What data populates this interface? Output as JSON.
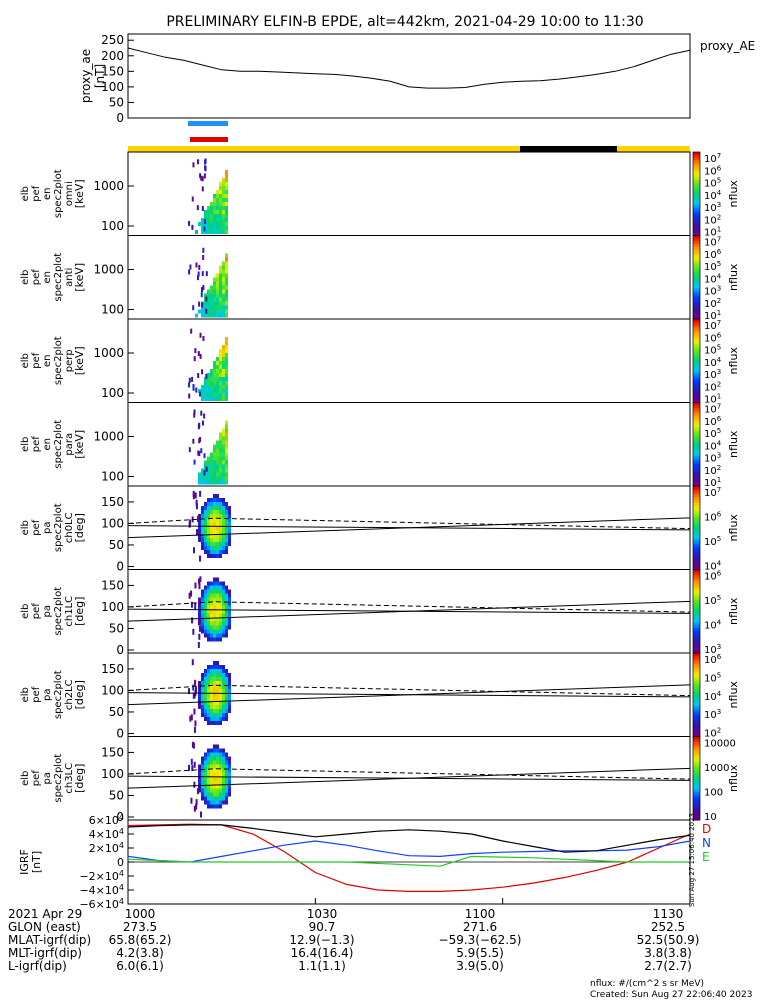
{
  "title": "PRELIMINARY ELFIN-B EPDE, alt=442km, 2021-04-29 10:00 to 11:30",
  "colors": {
    "flag_bar": "#ffd400",
    "flag_dark": "#000000",
    "indicator_top": "#1e90ff",
    "indicator_bottom": "#e00000",
    "igrf_d": "#e00000",
    "igrf_n": "#1040ff",
    "igrf_e": "#22cc22"
  },
  "chart_data": [
    {
      "type": "line",
      "id": "proxy_ae",
      "label_right": "proxy_AE",
      "ylabel": [
        "proxy_ae",
        "[nT]"
      ],
      "yticks": [
        "250",
        "200",
        "150",
        "100",
        "50",
        "0"
      ],
      "ylim": [
        0,
        270
      ],
      "x_minutes": [
        0,
        3,
        6,
        9,
        12,
        15,
        18,
        21,
        24,
        27,
        30,
        33,
        36,
        39,
        42,
        45,
        48,
        51,
        54,
        57,
        60,
        63,
        66,
        69,
        72,
        75,
        78,
        81,
        84,
        87,
        90
      ],
      "values": [
        225,
        210,
        195,
        185,
        170,
        155,
        150,
        150,
        148,
        145,
        142,
        140,
        135,
        128,
        118,
        100,
        96,
        96,
        98,
        108,
        115,
        118,
        120,
        125,
        132,
        140,
        150,
        165,
        185,
        205,
        218
      ]
    },
    {
      "type": "heatmap",
      "id": "omni",
      "ylabel": [
        "elb",
        "pef",
        "en",
        "spec2plot",
        "omni",
        "[keV]"
      ],
      "yticks": [
        "1000",
        "100"
      ],
      "colorbar": {
        "label": "nflux",
        "ticks": [
          "10^7",
          "10^6",
          "10^5",
          "10^4",
          "10^3",
          "10^2",
          "10^1"
        ]
      }
    },
    {
      "type": "heatmap",
      "id": "anti",
      "ylabel": [
        "elb",
        "pef",
        "en",
        "spec2plot",
        "anti",
        "[keV]"
      ],
      "yticks": [
        "1000",
        "100"
      ],
      "colorbar": {
        "label": "nflux",
        "ticks": [
          "10^7",
          "10^6",
          "10^5",
          "10^4",
          "10^3",
          "10^2",
          "10^1"
        ]
      }
    },
    {
      "type": "heatmap",
      "id": "perp",
      "ylabel": [
        "elb",
        "pef",
        "en",
        "spec2plot",
        "perp",
        "[keV]"
      ],
      "yticks": [
        "1000",
        "100"
      ],
      "colorbar": {
        "label": "nflux",
        "ticks": [
          "10^7",
          "10^6",
          "10^5",
          "10^4",
          "10^3",
          "10^2",
          "10^1"
        ]
      }
    },
    {
      "type": "heatmap",
      "id": "para",
      "ylabel": [
        "elb",
        "pef",
        "en",
        "spec2plot",
        "para",
        "[keV]"
      ],
      "yticks": [
        "1000",
        "100"
      ],
      "colorbar": {
        "label": "nflux",
        "ticks": [
          "10^7",
          "10^6",
          "10^5",
          "10^4",
          "10^3",
          "10^2",
          "10^1"
        ]
      }
    },
    {
      "type": "heatmap",
      "id": "ch0LC",
      "ylabel": [
        "elb",
        "pef",
        "pa",
        "spec2plot",
        "ch0LC",
        "[deg]"
      ],
      "yticks": [
        "150",
        "100",
        "50",
        "0"
      ],
      "colorbar": {
        "label": "nflux",
        "ticks": [
          "10^7",
          "10^6",
          "10^5",
          "10^4"
        ]
      }
    },
    {
      "type": "heatmap",
      "id": "ch1LC",
      "ylabel": [
        "elb",
        "pef",
        "pa",
        "spec2plot",
        "ch1LC",
        "[deg]"
      ],
      "yticks": [
        "150",
        "100",
        "50",
        "0"
      ],
      "colorbar": {
        "label": "nflux",
        "ticks": [
          "10^6",
          "10^5",
          "10^4",
          "10^3"
        ]
      }
    },
    {
      "type": "heatmap",
      "id": "ch2LC",
      "ylabel": [
        "elb",
        "pef",
        "pa",
        "spec2plot",
        "ch2LC",
        "[deg]"
      ],
      "yticks": [
        "150",
        "100",
        "50",
        "0"
      ],
      "colorbar": {
        "label": "nflux",
        "ticks": [
          "10^6",
          "10^5",
          "10^4",
          "10^3",
          "10^2"
        ]
      }
    },
    {
      "type": "heatmap",
      "id": "ch3LC",
      "ylabel": [
        "elb",
        "pef",
        "pa",
        "spec2plot",
        "ch3LC",
        "[deg]"
      ],
      "yticks": [
        "150",
        "100",
        "50",
        "0"
      ],
      "colorbar": {
        "label": "nflux",
        "ticks": [
          "10000",
          "1000",
          "100",
          "10"
        ]
      }
    },
    {
      "type": "line",
      "id": "igrf",
      "ylabel": [
        "IGRF",
        "[nT]"
      ],
      "yticks": [
        "6×10^4",
        "4×10^4",
        "2×10^4",
        "0",
        "−2×10^4",
        "−4×10^4",
        "−6×10^4"
      ],
      "ylim": [
        -60000,
        60000
      ],
      "series_labels": [
        "D",
        "N",
        "E"
      ],
      "x_minutes": [
        0,
        5,
        10,
        15,
        20,
        25,
        30,
        35,
        40,
        45,
        50,
        55,
        60,
        65,
        70,
        75,
        80,
        85,
        90
      ],
      "series": [
        {
          "name": "D",
          "values": [
            52000,
            53000,
            54000,
            53000,
            40000,
            15000,
            -15000,
            -32000,
            -40000,
            -42000,
            -42000,
            -40000,
            -36000,
            -30000,
            -22000,
            -12000,
            0,
            20000,
            40000
          ]
        },
        {
          "name": "N",
          "values": [
            8000,
            2000,
            0,
            8000,
            16000,
            24000,
            30000,
            24000,
            16000,
            9000,
            8000,
            12000,
            14000,
            15000,
            16000,
            16000,
            17000,
            22000,
            30000
          ]
        },
        {
          "name": "E",
          "values": [
            4000,
            2000,
            0,
            0,
            0,
            0,
            0,
            0,
            -2000,
            -4000,
            -6000,
            8000,
            7000,
            6000,
            4000,
            2000,
            0,
            0,
            0
          ]
        },
        {
          "name": "",
          "values": [
            50000,
            52000,
            53000,
            53000,
            48000,
            42000,
            36000,
            40000,
            44000,
            46000,
            44000,
            40000,
            30000,
            22000,
            14000,
            16000,
            24000,
            32000,
            38000
          ]
        }
      ]
    }
  ],
  "footer": {
    "labels": [
      "2021 Apr 29",
      "GLON (east)",
      "MLAT-igrf(dip)",
      "MLT-igrf(dip)",
      "L-igrf(dip)"
    ],
    "columns": [
      {
        "tick": "1000",
        "glon": "273.5",
        "mlat": "65.8(65.2)",
        "mlt": "4.2(3.8)",
        "l": "6.0(6.1)"
      },
      {
        "tick": "1030",
        "glon": "90.7",
        "mlat": "12.9(−1.3)",
        "mlt": "16.4(16.4)",
        "l": "1.1(1.1)"
      },
      {
        "tick": "1100",
        "glon": "271.6",
        "mlat": "−59.3(−62.5)",
        "mlt": "5.9(5.5)",
        "l": "3.9(5.0)"
      },
      {
        "tick": "1130",
        "glon": "252.5",
        "mlat": "52.5(50.9)",
        "mlt": "3.8(3.8)",
        "l": "2.7(2.7)"
      }
    ],
    "units_note": "nflux: #/(cm^2 s sr MeV)",
    "created": "Created: Sun Aug 27 22:06:40 2023",
    "vertical_stamp": "Sun Aug 27 15:06:40 2023"
  }
}
